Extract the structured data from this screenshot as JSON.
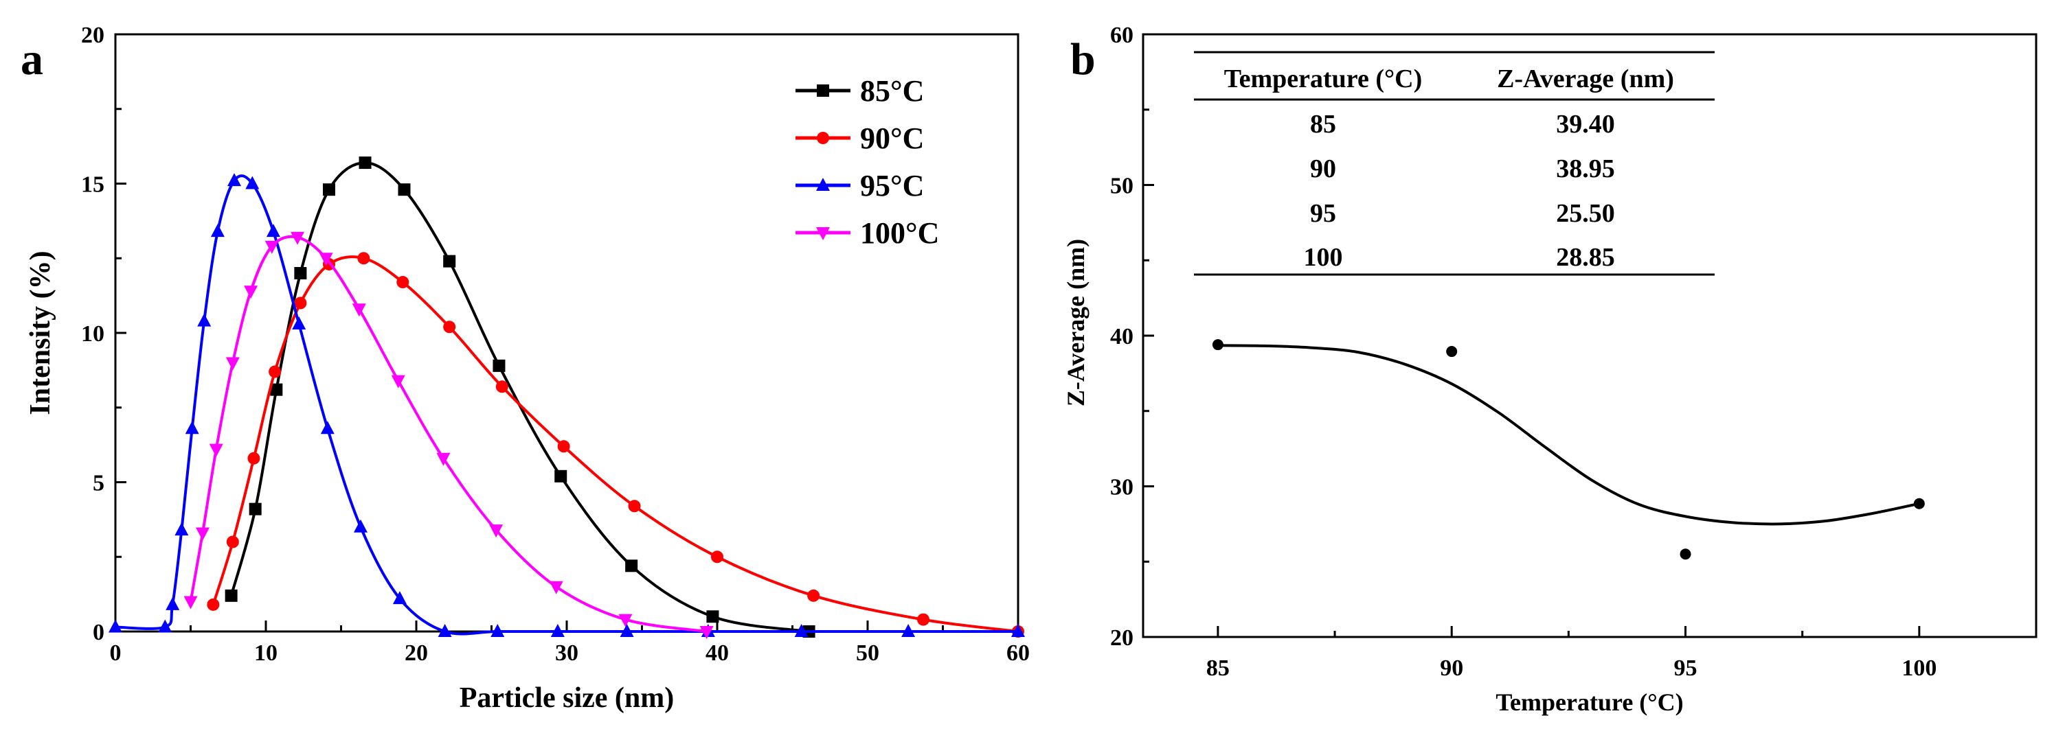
{
  "chart_data": [
    {
      "panel_label": "a",
      "type": "line",
      "xlabel": "Particle size (nm)",
      "ylabel": "Intensity (%)",
      "xlim": [
        0,
        60
      ],
      "ylim": [
        0,
        20
      ],
      "xticks": [
        "0",
        "10",
        "20",
        "30",
        "40",
        "50",
        "60"
      ],
      "yticks": [
        "0",
        "5",
        "10",
        "15",
        "20"
      ],
      "grid": false,
      "legend_position": "top-right",
      "series": [
        {
          "name": "85°C",
          "color": "#000000",
          "marker": "square",
          "points": [
            [
              7.7,
              1.2
            ],
            [
              9.3,
              4.1
            ],
            [
              10.7,
              8.1
            ],
            [
              12.3,
              12.0
            ],
            [
              14.2,
              14.8
            ],
            [
              16.6,
              15.7
            ],
            [
              19.2,
              14.8
            ],
            [
              22.2,
              12.4
            ],
            [
              25.5,
              8.9
            ],
            [
              29.6,
              5.2
            ],
            [
              34.3,
              2.2
            ],
            [
              39.7,
              0.5
            ],
            [
              46.1,
              0.0
            ]
          ]
        },
        {
          "name": "90°C",
          "color": "#ff0000",
          "marker": "circle",
          "points": [
            [
              6.5,
              0.9
            ],
            [
              7.8,
              3.0
            ],
            [
              9.2,
              5.8
            ],
            [
              10.6,
              8.7
            ],
            [
              12.3,
              11.0
            ],
            [
              14.2,
              12.3
            ],
            [
              16.5,
              12.5
            ],
            [
              19.1,
              11.7
            ],
            [
              22.2,
              10.2
            ],
            [
              25.7,
              8.2
            ],
            [
              29.8,
              6.2
            ],
            [
              34.5,
              4.2
            ],
            [
              40.0,
              2.5
            ],
            [
              46.4,
              1.2
            ],
            [
              53.7,
              0.4
            ],
            [
              60.0,
              0.0
            ]
          ]
        },
        {
          "name": "95°C",
          "color": "#0000ff",
          "marker": "triangle-up",
          "points": [
            [
              0.0,
              0.15
            ],
            [
              3.3,
              0.15
            ],
            [
              3.8,
              0.9
            ],
            [
              4.4,
              3.4
            ],
            [
              5.1,
              6.8
            ],
            [
              5.9,
              10.4
            ],
            [
              6.8,
              13.4
            ],
            [
              7.9,
              15.1
            ],
            [
              9.1,
              15.0
            ],
            [
              10.5,
              13.4
            ],
            [
              12.2,
              10.3
            ],
            [
              14.1,
              6.8
            ],
            [
              16.3,
              3.5
            ],
            [
              18.9,
              1.1
            ],
            [
              21.9,
              0.0
            ],
            [
              25.4,
              0.0
            ],
            [
              29.4,
              0.0
            ],
            [
              34.0,
              0.0
            ],
            [
              39.4,
              0.0
            ],
            [
              45.6,
              0.0
            ],
            [
              52.7,
              0.0
            ],
            [
              60.0,
              0.0
            ]
          ]
        },
        {
          "name": "100°C",
          "color": "#ff00ff",
          "marker": "triangle-down",
          "points": [
            [
              5.0,
              1.0
            ],
            [
              5.8,
              3.3
            ],
            [
              6.7,
              6.1
            ],
            [
              7.8,
              9.0
            ],
            [
              9.0,
              11.4
            ],
            [
              10.4,
              12.9
            ],
            [
              12.1,
              13.2
            ],
            [
              14.0,
              12.5
            ],
            [
              16.2,
              10.8
            ],
            [
              18.8,
              8.4
            ],
            [
              21.8,
              5.8
            ],
            [
              25.3,
              3.4
            ],
            [
              29.3,
              1.5
            ],
            [
              33.9,
              0.4
            ],
            [
              39.3,
              0.0
            ]
          ]
        }
      ]
    },
    {
      "panel_label": "b",
      "type": "scatter",
      "xlabel": "Temperature (°C)",
      "ylabel": "Z-Average (nm)",
      "xlim": [
        83.4,
        102.5
      ],
      "ylim": [
        20,
        60
      ],
      "xticks": [
        "85",
        "90",
        "95",
        "100"
      ],
      "yticks": [
        "20",
        "30",
        "40",
        "50",
        "60"
      ],
      "grid": false,
      "points": [
        [
          85,
          39.4
        ],
        [
          90,
          38.95
        ],
        [
          95,
          25.5
        ],
        [
          100,
          28.85
        ]
      ],
      "fit_curve": [
        [
          85,
          39.35
        ],
        [
          86,
          39.32
        ],
        [
          87,
          39.2
        ],
        [
          88,
          38.9
        ],
        [
          89,
          38.1
        ],
        [
          90,
          36.8
        ],
        [
          91,
          34.9
        ],
        [
          92,
          32.6
        ],
        [
          93,
          30.4
        ],
        [
          94,
          28.8
        ],
        [
          95,
          28.0
        ],
        [
          96,
          27.6
        ],
        [
          97,
          27.5
        ],
        [
          98,
          27.7
        ],
        [
          99,
          28.2
        ],
        [
          100,
          28.85
        ]
      ],
      "table": {
        "headers": [
          "Temperature (°C)",
          "Z-Average (nm)"
        ],
        "rows": [
          [
            "85",
            "39.40"
          ],
          [
            "90",
            "38.95"
          ],
          [
            "95",
            "25.50"
          ],
          [
            "100",
            "28.85"
          ]
        ]
      }
    }
  ]
}
